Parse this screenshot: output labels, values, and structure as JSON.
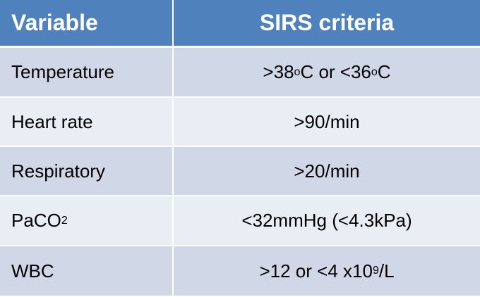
{
  "table": {
    "header": [
      "Variable",
      "SIRS criteria"
    ],
    "rows": [
      [
        "Temperature",
        [
          {
            "text": ">38"
          },
          {
            "sup": "o"
          },
          {
            "text": "C or <36"
          },
          {
            "sup": "o"
          },
          {
            "text": "C"
          }
        ]
      ],
      [
        "Heart rate",
        ">90/min"
      ],
      [
        "Respiratory",
        ">20/min"
      ],
      [
        [
          {
            "text": "PaCO"
          },
          {
            "sub": "2"
          }
        ],
        "<32mmHg (<4.3kPa)"
      ],
      [
        "WBC",
        [
          {
            "text": ">12 or <4 x10"
          },
          {
            "sup": "9"
          },
          {
            "text": "/L"
          }
        ]
      ]
    ]
  }
}
